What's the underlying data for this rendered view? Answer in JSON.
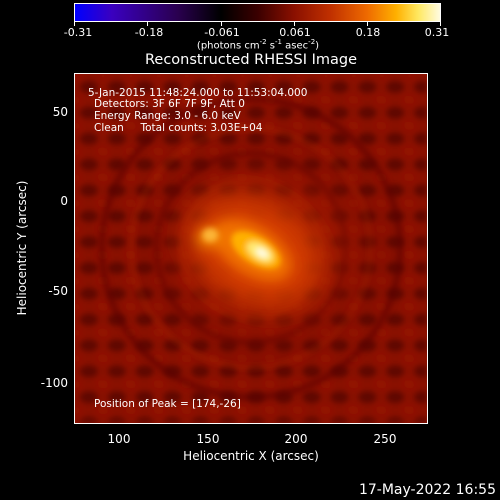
{
  "colorbar": {
    "ticks": [
      "-0.31",
      "-0.18",
      "-0.061",
      "0.061",
      "0.18",
      "0.31"
    ],
    "units_prefix": "(photons cm",
    "units_exp1": "-2",
    "units_mid1": " s",
    "units_exp2": "-1",
    "units_mid2": " asec",
    "units_exp3": "-2",
    "units_suffix": ")"
  },
  "plot": {
    "title": "Reconstructed RHESSI Image",
    "annotations": {
      "time_range": "5-Jan-2015 11:48:24.000 to 11:53:04.000",
      "detectors": "Detectors: 3F 6F 7F 9F, Att 0",
      "energy": "Energy Range: 3.0 - 6.0 keV",
      "method": "Clean     Total counts: 3.03E+04",
      "peak": "Position of Peak = [174,-26]"
    },
    "x_axis": {
      "title": "Heliocentric X (arcsec)",
      "ticks": [
        "100",
        "150",
        "200",
        "250"
      ]
    },
    "y_axis": {
      "title": "Heliocentric Y (arcsec)",
      "ticks": [
        "50",
        "0",
        "-50",
        "-100"
      ]
    }
  },
  "footer": {
    "timestamp": "17-May-2022 16:55"
  }
}
